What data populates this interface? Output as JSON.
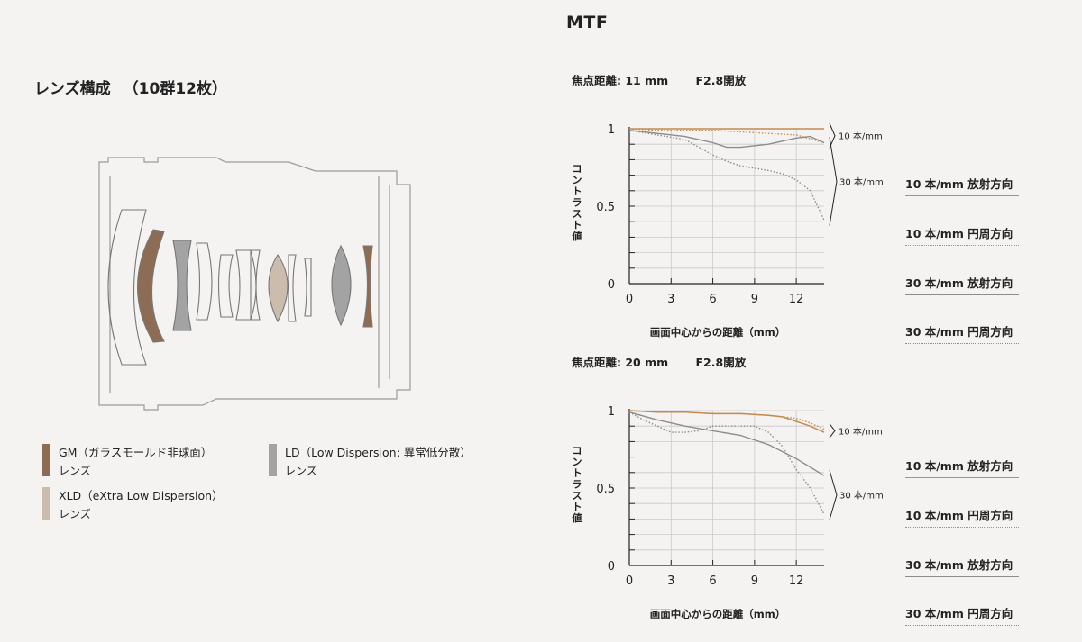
{
  "header": {
    "mtf_title": "MTF"
  },
  "lens": {
    "title": "レンズ構成",
    "count": "（10群12枚）",
    "legend": [
      {
        "name": "GM（ガラスモールド非球面）",
        "sub": "レンズ",
        "color": "#8d6c56"
      },
      {
        "name": "LD（Low Dispersion: 異常低分散）",
        "sub": "レンズ",
        "color": "#a3a3a3"
      },
      {
        "name": "XLD（eXtra Low Dispersion）",
        "sub": "レンズ",
        "color": "#cbbcae"
      }
    ]
  },
  "mtf": {
    "x_ticks": [
      "0",
      "3",
      "6",
      "9",
      "12"
    ],
    "y_ticks": [
      "1",
      "0.5",
      "0"
    ],
    "ylabel": "コントラスト値",
    "xlabel": "画面中心からの距離（mm）",
    "label_10": "10 本/mm",
    "label_30": "30 本/mm",
    "colors": {
      "sagittal_10": "#c48a52",
      "meridional_10": "#c48a52",
      "sagittal_30": "#8c8c8c",
      "meridional_30": "#8c8c8c"
    }
  },
  "charts": [
    {
      "focal": "焦点距離: 11 mm",
      "aperture": "F2.8開放"
    },
    {
      "focal": "焦点距離: 20 mm",
      "aperture": "F2.8開放"
    }
  ],
  "side_legend": [
    {
      "label": "10 本/mm 放射方向",
      "style": "solid",
      "color": "#c48a52"
    },
    {
      "label": "10 本/mm 円周方向",
      "style": "dotted",
      "color": "#c48a52"
    },
    {
      "label": "30 本/mm 放射方向",
      "style": "solid",
      "color": "#8c8c8c"
    },
    {
      "label": "30 本/mm 円周方向",
      "style": "dotted",
      "color": "#8c8c8c"
    }
  ],
  "chart_data": [
    {
      "type": "line",
      "title": "焦点距離: 11 mm F2.8開放",
      "xlabel": "画面中心からの距離（mm）",
      "ylabel": "コントラスト値",
      "xlim": [
        0,
        14
      ],
      "ylim": [
        0,
        1
      ],
      "series": [
        {
          "name": "10 本/mm 放射方向",
          "x": [
            0,
            2,
            4,
            6,
            8,
            10,
            12,
            14
          ],
          "y": [
            1.0,
            1.0,
            1.0,
            1.0,
            1.0,
            1.0,
            1.0,
            1.0
          ]
        },
        {
          "name": "10 本/mm 円周方向",
          "x": [
            0,
            2,
            4,
            6,
            8,
            10,
            12,
            14
          ],
          "y": [
            1.0,
            0.99,
            0.99,
            0.99,
            0.98,
            0.97,
            0.96,
            0.91
          ]
        },
        {
          "name": "30 本/mm 放射方向",
          "x": [
            0,
            2,
            4,
            6,
            7,
            8,
            10,
            12,
            13,
            14
          ],
          "y": [
            0.99,
            0.97,
            0.95,
            0.91,
            0.88,
            0.88,
            0.9,
            0.94,
            0.95,
            0.91
          ]
        },
        {
          "name": "30 本/mm 円周方向",
          "x": [
            0,
            2,
            4,
            6,
            7,
            8,
            10,
            11,
            12,
            13,
            14
          ],
          "y": [
            0.99,
            0.96,
            0.93,
            0.83,
            0.79,
            0.76,
            0.73,
            0.71,
            0.67,
            0.6,
            0.41
          ]
        }
      ]
    },
    {
      "type": "line",
      "title": "焦点距離: 20 mm F2.8開放",
      "xlabel": "画面中心からの距離（mm）",
      "ylabel": "コントラスト値",
      "xlim": [
        0,
        14
      ],
      "ylim": [
        0,
        1
      ],
      "series": [
        {
          "name": "10 本/mm 放射方向",
          "x": [
            0,
            2,
            4,
            6,
            8,
            10,
            11,
            12,
            13,
            14
          ],
          "y": [
            1.0,
            0.99,
            0.99,
            0.98,
            0.98,
            0.97,
            0.96,
            0.93,
            0.9,
            0.86
          ]
        },
        {
          "name": "10 本/mm 円周方向",
          "x": [
            0,
            2,
            4,
            6,
            8,
            10,
            11,
            12,
            13,
            14
          ],
          "y": [
            1.0,
            0.99,
            0.99,
            0.98,
            0.98,
            0.97,
            0.96,
            0.95,
            0.92,
            0.88
          ]
        },
        {
          "name": "30 本/mm 放射方向",
          "x": [
            0,
            2,
            4,
            6,
            8,
            10,
            12,
            14
          ],
          "y": [
            0.99,
            0.94,
            0.9,
            0.87,
            0.84,
            0.78,
            0.69,
            0.58
          ]
        },
        {
          "name": "30 本/mm 円周方向",
          "x": [
            0,
            1,
            2,
            3,
            4,
            5,
            6,
            8,
            9,
            10,
            11,
            12,
            13,
            14
          ],
          "y": [
            0.99,
            0.94,
            0.9,
            0.86,
            0.86,
            0.87,
            0.9,
            0.9,
            0.9,
            0.86,
            0.77,
            0.62,
            0.5,
            0.33
          ]
        }
      ]
    }
  ]
}
